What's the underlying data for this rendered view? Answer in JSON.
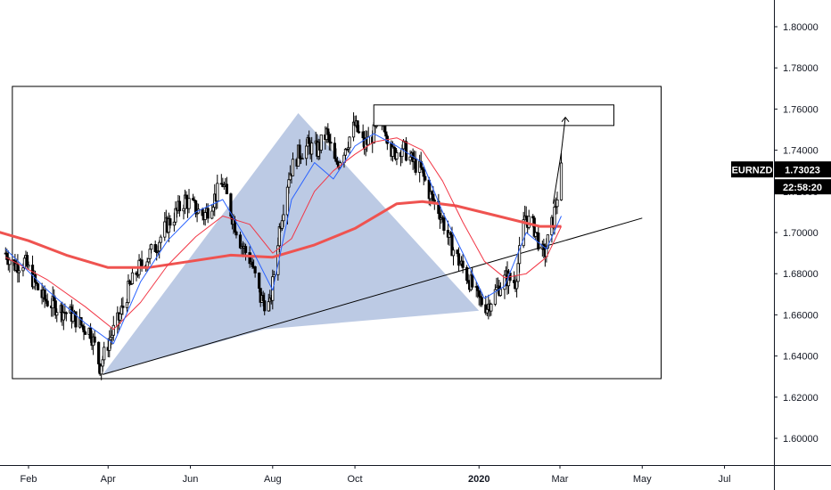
{
  "chart_data": {
    "type": "candlestick",
    "symbol": "EURNZD",
    "last_price": "1.73023",
    "countdown": "22:58:20",
    "ylim": [
      1.585,
      1.815
    ],
    "y_ticks": [
      "1.80000",
      "1.78000",
      "1.76000",
      "1.74000",
      "1.72000",
      "1.70000",
      "1.68000",
      "1.66000",
      "1.64000",
      "1.62000",
      "1.60000"
    ],
    "x_ticks": [
      {
        "label": "Feb",
        "year": false
      },
      {
        "label": "Apr",
        "year": false
      },
      {
        "label": "Jun",
        "year": false
      },
      {
        "label": "Aug",
        "year": false
      },
      {
        "label": "Oct",
        "year": false
      },
      {
        "label": "2020",
        "year": true
      },
      {
        "label": "Mar",
        "year": false
      },
      {
        "label": "May",
        "year": false
      },
      {
        "label": "Jul",
        "year": false
      }
    ],
    "price_path": [
      [
        "2019-01-15",
        1.69
      ],
      [
        "2019-01-22",
        1.684
      ],
      [
        "2019-01-29",
        1.686
      ],
      [
        "2019-02-05",
        1.676
      ],
      [
        "2019-02-12",
        1.668
      ],
      [
        "2019-02-19",
        1.665
      ],
      [
        "2019-02-26",
        1.662
      ],
      [
        "2019-03-05",
        1.66
      ],
      [
        "2019-03-12",
        1.655
      ],
      [
        "2019-03-19",
        1.652
      ],
      [
        "2019-03-26",
        1.635
      ],
      [
        "2019-04-02",
        1.648
      ],
      [
        "2019-04-09",
        1.658
      ],
      [
        "2019-04-16",
        1.672
      ],
      [
        "2019-04-23",
        1.682
      ],
      [
        "2019-04-30",
        1.688
      ],
      [
        "2019-05-07",
        1.694
      ],
      [
        "2019-05-14",
        1.703
      ],
      [
        "2019-05-21",
        1.709
      ],
      [
        "2019-05-28",
        1.716
      ],
      [
        "2019-06-04",
        1.712
      ],
      [
        "2019-06-11",
        1.708
      ],
      [
        "2019-06-18",
        1.716
      ],
      [
        "2019-06-25",
        1.724
      ],
      [
        "2019-07-02",
        1.708
      ],
      [
        "2019-07-09",
        1.694
      ],
      [
        "2019-07-16",
        1.686
      ],
      [
        "2019-07-23",
        1.668
      ],
      [
        "2019-07-30",
        1.664
      ],
      [
        "2019-08-06",
        1.702
      ],
      [
        "2019-08-13",
        1.728
      ],
      [
        "2019-08-20",
        1.738
      ],
      [
        "2019-08-27",
        1.742
      ],
      [
        "2019-09-03",
        1.74
      ],
      [
        "2019-09-10",
        1.748
      ],
      [
        "2019-09-17",
        1.732
      ],
      [
        "2019-09-24",
        1.742
      ],
      [
        "2019-10-01",
        1.752
      ],
      [
        "2019-10-08",
        1.742
      ],
      [
        "2019-10-15",
        1.748
      ],
      [
        "2019-10-22",
        1.755
      ],
      [
        "2019-10-29",
        1.738
      ],
      [
        "2019-11-05",
        1.742
      ],
      [
        "2019-11-12",
        1.735
      ],
      [
        "2019-11-19",
        1.73
      ],
      [
        "2019-11-26",
        1.718
      ],
      [
        "2019-12-03",
        1.71
      ],
      [
        "2019-12-10",
        1.696
      ],
      [
        "2019-12-17",
        1.686
      ],
      [
        "2019-12-24",
        1.678
      ],
      [
        "2019-12-31",
        1.668
      ],
      [
        "2020-01-07",
        1.664
      ],
      [
        "2020-01-14",
        1.672
      ],
      [
        "2020-01-21",
        1.678
      ],
      [
        "2020-01-28",
        1.676
      ],
      [
        "2020-02-04",
        1.708
      ],
      [
        "2020-02-11",
        1.702
      ],
      [
        "2020-02-18",
        1.688
      ],
      [
        "2020-02-25",
        1.706
      ],
      [
        "2020-03-02",
        1.73
      ]
    ],
    "ma_red_path": [
      [
        "2019-01-15",
        1.688
      ],
      [
        "2019-02-15",
        1.677
      ],
      [
        "2019-03-15",
        1.664
      ],
      [
        "2019-04-05",
        1.653
      ],
      [
        "2019-04-25",
        1.666
      ],
      [
        "2019-05-15",
        1.684
      ],
      [
        "2019-06-05",
        1.698
      ],
      [
        "2019-06-25",
        1.708
      ],
      [
        "2019-07-15",
        1.704
      ],
      [
        "2019-08-01",
        1.69
      ],
      [
        "2019-08-15",
        1.697
      ],
      [
        "2019-09-01",
        1.72
      ],
      [
        "2019-09-15",
        1.73
      ],
      [
        "2019-10-01",
        1.738
      ],
      [
        "2019-10-15",
        1.744
      ],
      [
        "2019-11-01",
        1.746
      ],
      [
        "2019-11-20",
        1.74
      ],
      [
        "2019-12-05",
        1.725
      ],
      [
        "2019-12-20",
        1.705
      ],
      [
        "2020-01-05",
        1.686
      ],
      [
        "2020-01-20",
        1.678
      ],
      [
        "2020-02-05",
        1.68
      ],
      [
        "2020-02-20",
        1.688
      ],
      [
        "2020-03-02",
        1.703
      ]
    ],
    "ma_blue_path": [
      [
        "2019-01-15",
        1.692
      ],
      [
        "2019-02-15",
        1.672
      ],
      [
        "2019-03-15",
        1.656
      ],
      [
        "2019-04-05",
        1.646
      ],
      [
        "2019-04-25",
        1.676
      ],
      [
        "2019-05-15",
        1.696
      ],
      [
        "2019-06-05",
        1.71
      ],
      [
        "2019-06-25",
        1.716
      ],
      [
        "2019-07-15",
        1.694
      ],
      [
        "2019-08-01",
        1.672
      ],
      [
        "2019-08-15",
        1.716
      ],
      [
        "2019-09-01",
        1.734
      ],
      [
        "2019-09-15",
        1.726
      ],
      [
        "2019-10-01",
        1.742
      ],
      [
        "2019-10-15",
        1.748
      ],
      [
        "2019-11-01",
        1.742
      ],
      [
        "2019-11-20",
        1.734
      ],
      [
        "2019-12-05",
        1.71
      ],
      [
        "2019-12-20",
        1.69
      ],
      [
        "2020-01-05",
        1.668
      ],
      [
        "2020-01-20",
        1.674
      ],
      [
        "2020-02-05",
        1.7
      ],
      [
        "2020-02-20",
        1.692
      ],
      [
        "2020-03-02",
        1.708
      ]
    ],
    "ma_thick_path": [
      [
        "2019-01-01",
        1.702
      ],
      [
        "2019-02-01",
        1.696
      ],
      [
        "2019-03-01",
        1.689
      ],
      [
        "2019-04-01",
        1.683
      ],
      [
        "2019-05-01",
        1.683
      ],
      [
        "2019-06-01",
        1.686
      ],
      [
        "2019-07-01",
        1.689
      ],
      [
        "2019-08-01",
        1.688
      ],
      [
        "2019-09-01",
        1.694
      ],
      [
        "2019-10-01",
        1.702
      ],
      [
        "2019-11-01",
        1.714
      ],
      [
        "2019-11-20",
        1.715
      ],
      [
        "2019-12-15",
        1.713
      ],
      [
        "2020-01-15",
        1.708
      ],
      [
        "2020-02-15",
        1.703
      ],
      [
        "2020-03-02",
        1.703
      ]
    ],
    "triangle": [
      [
        "2019-03-28",
        1.631
      ],
      [
        "2019-08-20",
        1.758
      ],
      [
        "2020-01-01",
        1.662
      ],
      [
        "2019-07-26",
        1.653
      ]
    ],
    "trendline": [
      [
        "2019-03-28",
        1.631
      ],
      [
        "2020-05-01",
        1.707
      ]
    ],
    "frame_box": [
      [
        "2019-01-20",
        1.771
      ],
      [
        "2020-05-15",
        1.629
      ]
    ],
    "target_zone": [
      [
        "2019-10-15",
        1.762
      ],
      [
        "2020-04-10",
        1.752
      ]
    ],
    "projection_arrow": [
      [
        "2020-02-25",
        1.714
      ],
      [
        "2020-03-02",
        1.739
      ],
      [
        "2020-03-05",
        1.756
      ]
    ]
  }
}
